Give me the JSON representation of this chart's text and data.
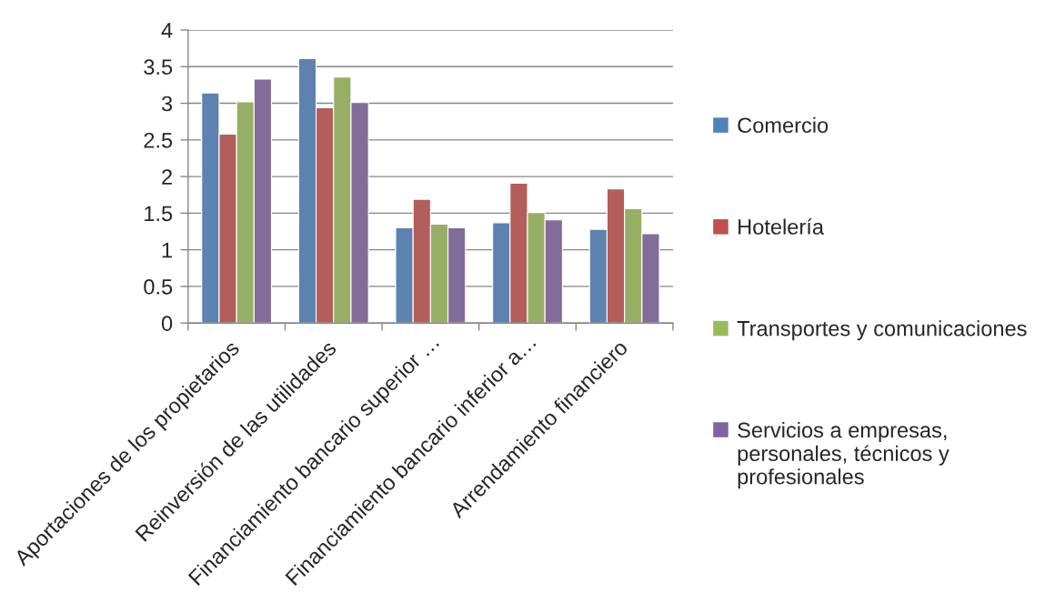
{
  "chart_data": {
    "type": "bar",
    "categories": [
      "Aportaciones de los propietarios",
      "Reinversión de las utilidades",
      "Financiamiento bancario superior …",
      "Financiamiento bancario inferior a…",
      "Arrendamiento financiero"
    ],
    "series": [
      {
        "name": "Comercio",
        "color": "#4f81bd",
        "values": [
          3.14,
          3.61,
          1.3,
          1.37,
          1.28
        ]
      },
      {
        "name": "Hotelería",
        "color": "#c0504d",
        "values": [
          2.58,
          2.94,
          1.69,
          1.91,
          1.83
        ]
      },
      {
        "name": "Transportes y comunicaciones",
        "color": "#9bbb59",
        "values": [
          3.02,
          3.36,
          1.35,
          1.51,
          1.56
        ]
      },
      {
        "name": "Servicios a empresas, personales, técnicos y profesionales",
        "color": "#8064a2",
        "values": [
          3.33,
          3.01,
          1.3,
          1.41,
          1.22
        ]
      }
    ],
    "ylim": [
      0,
      4
    ],
    "yticks": [
      0,
      0.5,
      1,
      1.5,
      2,
      2.5,
      3,
      3.5,
      4
    ],
    "grid": "y",
    "legend": "right"
  }
}
